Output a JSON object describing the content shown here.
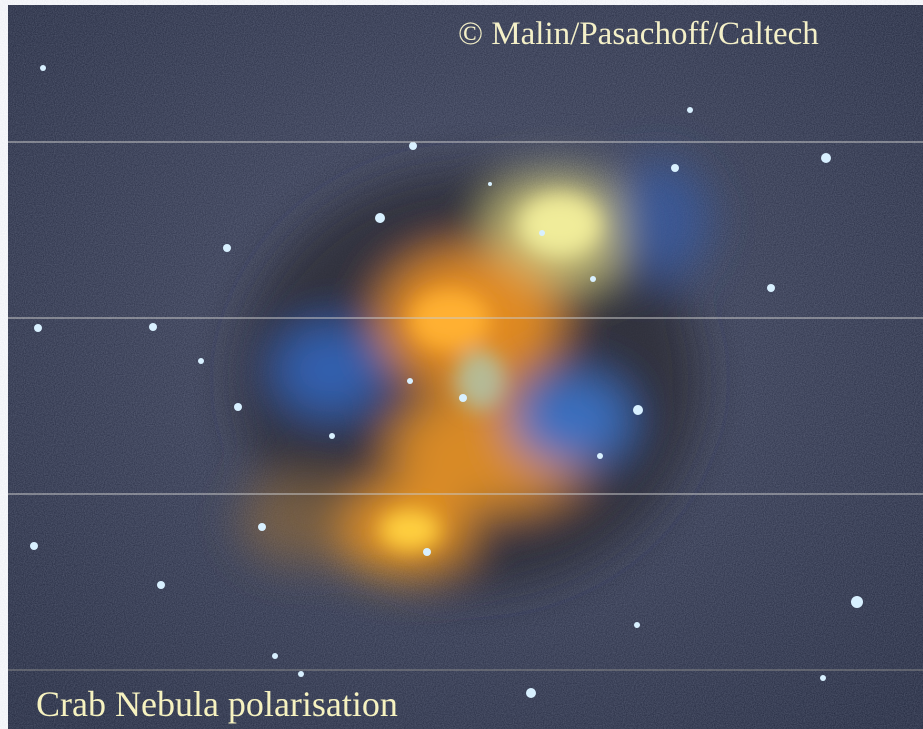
{
  "credit": "© Malin/Pasachoff/Caltech",
  "caption": "Crab Nebula polarisation"
}
